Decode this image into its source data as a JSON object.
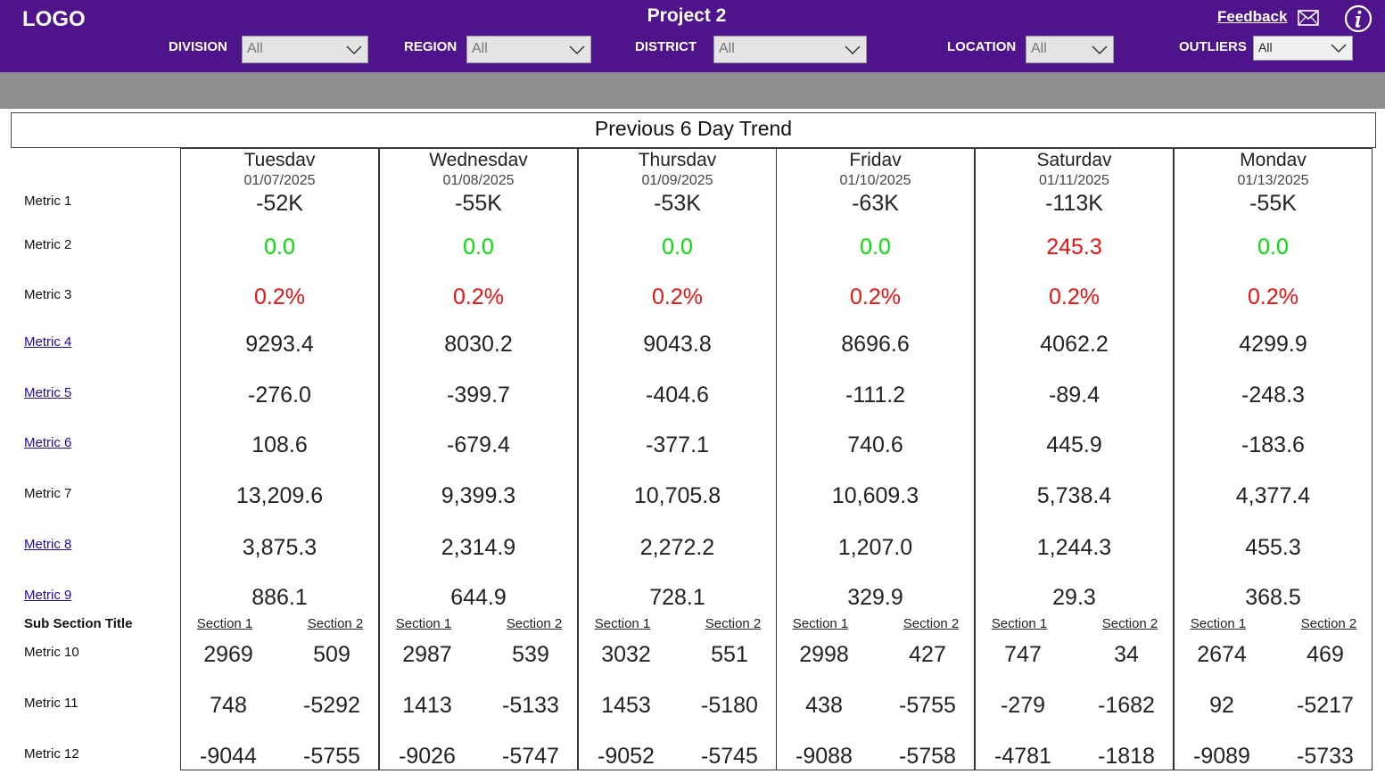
{
  "header": {
    "logo": "LOGO",
    "title": "Project 2",
    "feedback": "Feedback",
    "filters": [
      {
        "label": "DIVISION",
        "value": "All"
      },
      {
        "label": "REGION",
        "value": "All"
      },
      {
        "label": "DISTRICT",
        "value": "All"
      },
      {
        "label": "LOCATION",
        "value": "All"
      },
      {
        "label": "OUTLIERS",
        "value": "All"
      }
    ]
  },
  "colors": {
    "brand": "#4f148c",
    "positive": "#00e000",
    "negative": "#ee1111",
    "link": "#1a0dab"
  },
  "trend_title": "Previous 6 Day Trend",
  "metrics": [
    "Metric 1",
    "Metric 2",
    "Metric 3",
    "Metric 4",
    "Metric 5",
    "Metric 6",
    "Metric 7",
    "Metric 8",
    "Metric 9",
    "Sub Section Title",
    "Metric 10",
    "Metric 11",
    "Metric 12"
  ],
  "days": [
    {
      "name": "Tuesdav",
      "date": "01/07/2025",
      "m1": "-52K",
      "m2": "0.0",
      "m3": "0.2%",
      "m4": "9293.4",
      "m5": "-276.0",
      "m6": "108.6",
      "m7": "13,209.6",
      "m8": "3,875.3",
      "m9": "886.1",
      "s1": "Section 1",
      "s2": "Section 2",
      "m10": [
        "2969",
        "509"
      ],
      "m11": [
        "748",
        "-5292"
      ],
      "m12": [
        "-9044",
        "-5755"
      ]
    },
    {
      "name": "Wednesdav",
      "date": "01/08/2025",
      "m1": "-55K",
      "m2": "0.0",
      "m3": "0.2%",
      "m4": "8030.2",
      "m5": "-399.7",
      "m6": "-679.4",
      "m7": "9,399.3",
      "m8": "2,314.9",
      "m9": "644.9",
      "s1": "Section 1",
      "s2": "Section 2",
      "m10": [
        "2987",
        "539"
      ],
      "m11": [
        "1413",
        "-5133"
      ],
      "m12": [
        "-9026",
        "-5747"
      ]
    },
    {
      "name": "Thursdav",
      "date": "01/09/2025",
      "m1": "-53K",
      "m2": "0.0",
      "m3": "0.2%",
      "m4": "9043.8",
      "m5": "-404.6",
      "m6": "-377.1",
      "m7": "10,705.8",
      "m8": "2,272.2",
      "m9": "728.1",
      "s1": "Section 1",
      "s2": "Section 2",
      "m10": [
        "3032",
        "551"
      ],
      "m11": [
        "1453",
        "-5180"
      ],
      "m12": [
        "-9052",
        "-5745"
      ]
    },
    {
      "name": "Fridav",
      "date": "01/10/2025",
      "m1": "-63K",
      "m2": "0.0",
      "m3": "0.2%",
      "m4": "8696.6",
      "m5": "-111.2",
      "m6": "740.6",
      "m7": "10,609.3",
      "m8": "1,207.0",
      "m9": "329.9",
      "s1": "Section 1",
      "s2": "Section 2",
      "m10": [
        "2998",
        "427"
      ],
      "m11": [
        "438",
        "-5755"
      ],
      "m12": [
        "-9088",
        "-5758"
      ]
    },
    {
      "name": "Saturdav",
      "date": "01/11/2025",
      "m1": "-113K",
      "m2": "245.3",
      "m3": "0.2%",
      "m4": "4062.2",
      "m5": "-89.4",
      "m6": "445.9",
      "m7": "5,738.4",
      "m8": "1,244.3",
      "m9": "29.3",
      "s1": "Section 1",
      "s2": "Section 2",
      "m10": [
        "747",
        "34"
      ],
      "m11": [
        "-279",
        "-1682"
      ],
      "m12": [
        "-4781",
        "-1818"
      ]
    },
    {
      "name": "Mondav",
      "date": "01/13/2025",
      "m1": "-55K",
      "m2": "0.0",
      "m3": "0.2%",
      "m4": "4299.9",
      "m5": "-248.3",
      "m6": "-183.6",
      "m7": "4,377.4",
      "m8": "455.3",
      "m9": "368.5",
      "s1": "Section 1",
      "s2": "Section 2",
      "m10": [
        "2674",
        "469"
      ],
      "m11": [
        "92",
        "-5217"
      ],
      "m12": [
        "-9089",
        "-5733"
      ]
    }
  ]
}
